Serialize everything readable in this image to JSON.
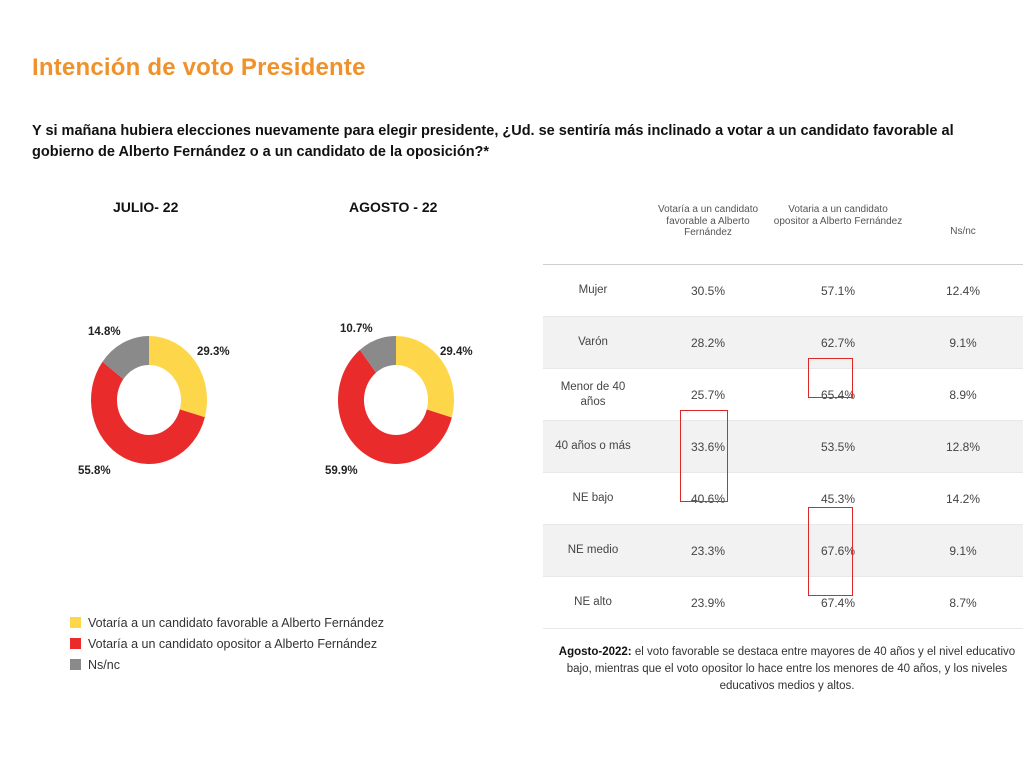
{
  "title": "Intención de voto Presidente",
  "question": "Y si mañana hubiera elecciones nuevamente para elegir presidente, ¿Ud. se sentiría más inclinado a votar a un candidato favorable al gobierno de Alberto Fernández o a un candidato de la oposición?*",
  "colors": {
    "favorable": "#fed64a",
    "opositor": "#ea2b2b",
    "nsnc": "#8a8a8a",
    "title": "#f0922b",
    "highlight": "#e02727"
  },
  "chart_data": [
    {
      "type": "pie",
      "title": "JULIO- 22",
      "labels": [
        "Votaría a un candidato favorable a Alberto Fernández",
        "Votaría a un candidato opositor a Alberto Fernández",
        "Ns/nc"
      ],
      "values": [
        29.3,
        55.8,
        14.8
      ],
      "value_labels": [
        "29.3%",
        "55.8%",
        "14.8%"
      ]
    },
    {
      "type": "pie",
      "title": "AGOSTO - 22",
      "labels": [
        "Votaría a un candidato favorable a Alberto Fernández",
        "Votaría a un candidato opositor a Alberto Fernández",
        "Ns/nc"
      ],
      "values": [
        29.4,
        59.9,
        10.7
      ],
      "value_labels": [
        "29.4%",
        "59.9%",
        "10.7%"
      ]
    },
    {
      "type": "table",
      "columns": [
        "",
        "Votaría a un candidato favorable a Alberto Fernández",
        "Votaria a un candidato opositor a Alberto Fernández",
        "Ns/nc"
      ],
      "rows": [
        [
          "Mujer",
          "30.5%",
          "57.1%",
          "12.4%"
        ],
        [
          "Varón",
          "28.2%",
          "62.7%",
          "9.1%"
        ],
        [
          "Menor de 40 años",
          "25.7%",
          "65.4%",
          "8.9%"
        ],
        [
          "40 años o más",
          "33.6%",
          "53.5%",
          "12.8%"
        ],
        [
          "NE bajo",
          "40.6%",
          "45.3%",
          "14.2%"
        ],
        [
          "NE medio",
          "23.3%",
          "67.6%",
          "9.1%"
        ],
        [
          "NE alto",
          "23.9%",
          "67.4%",
          "8.7%"
        ]
      ]
    }
  ],
  "legend": [
    {
      "label": "Votaría a un candidato favorable a Alberto Fernández",
      "color": "#fed64a"
    },
    {
      "label": "Votaría a un candidato opositor a Alberto Fernández",
      "color": "#ea2b2b"
    },
    {
      "label": "Ns/nc",
      "color": "#8a8a8a"
    }
  ],
  "note": {
    "lead": "Agosto-2022:",
    "text": " el voto favorable se destaca entre mayores de 40 años y el nivel educativo bajo, mientras que el voto opositor lo hace entre los menores de 40 años, y los niveles educativos medios y altos."
  }
}
